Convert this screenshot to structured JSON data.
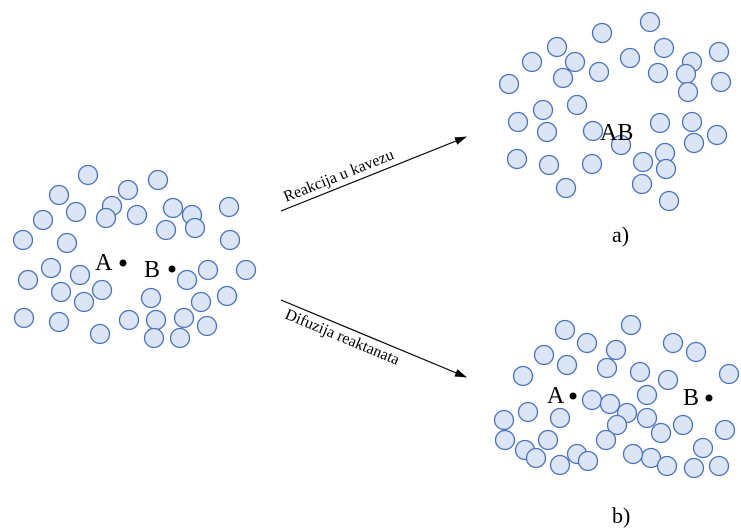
{
  "labels": {
    "reactant_a": "A",
    "reactant_b": "B",
    "product": "AB",
    "arrow_top": "Reakcija u kavezu",
    "arrow_bottom": "Difuzija reaktanata",
    "caption_a": "a)",
    "caption_b": "b)"
  },
  "colors": {
    "molecule_fill": "#dbe5f5",
    "molecule_stroke": "#4a72b8",
    "text": "#000000"
  },
  "icons": {
    "molecule": "circle",
    "particle": "filled-dot",
    "arrow": "arrow-right"
  }
}
